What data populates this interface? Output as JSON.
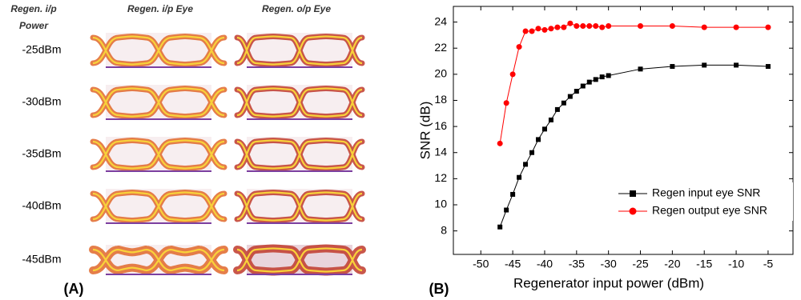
{
  "eye_panel": {
    "panel_label": "(A)",
    "power_header": [
      "Regen. i/p",
      "Power"
    ],
    "input_header": "Regen. i/p Eye",
    "output_header": "Regen. o/p Eye",
    "powers": [
      "-25dBm",
      "-30dBm",
      "-35dBm",
      "-40dBm",
      "-45dBm"
    ]
  },
  "chart_data": {
    "type": "line",
    "panel_label": "(B)",
    "x_label": "Regenerator input power (dBm)",
    "y_label": "SNR (dB)",
    "x": [
      -47,
      -46,
      -45,
      -44,
      -43,
      -42,
      -41,
      -40,
      -39,
      -38,
      -37,
      -36,
      -35,
      -34,
      -33,
      -32,
      -31,
      -30,
      -25,
      -20,
      -15,
      -10,
      -5
    ],
    "series": [
      {
        "name": "Regen input eye SNR",
        "color": "#000000",
        "marker": "square",
        "values": [
          8.3,
          9.6,
          10.8,
          12.1,
          13.1,
          14.0,
          15.0,
          15.8,
          16.5,
          17.3,
          17.8,
          18.3,
          18.7,
          19.1,
          19.4,
          19.6,
          19.8,
          19.9,
          20.4,
          20.6,
          20.7,
          20.7,
          20.6
        ]
      },
      {
        "name": "Regen output eye SNR",
        "color": "#ff0000",
        "marker": "circle",
        "values": [
          14.7,
          17.8,
          20.0,
          22.1,
          23.3,
          23.3,
          23.5,
          23.4,
          23.5,
          23.6,
          23.6,
          23.9,
          23.7,
          23.7,
          23.7,
          23.7,
          23.6,
          23.7,
          23.7,
          23.7,
          23.6,
          23.6,
          23.6
        ]
      }
    ],
    "xlim": [
      -54.3,
      -1.1
    ],
    "ylim": [
      6.2,
      25.2
    ],
    "xticks": [
      -50,
      -45,
      -40,
      -35,
      -30,
      -25,
      -20,
      -15,
      -10,
      -5
    ],
    "yticks": [
      8,
      10,
      12,
      14,
      16,
      18,
      20,
      22,
      24
    ],
    "grid": false,
    "legend": "right"
  }
}
